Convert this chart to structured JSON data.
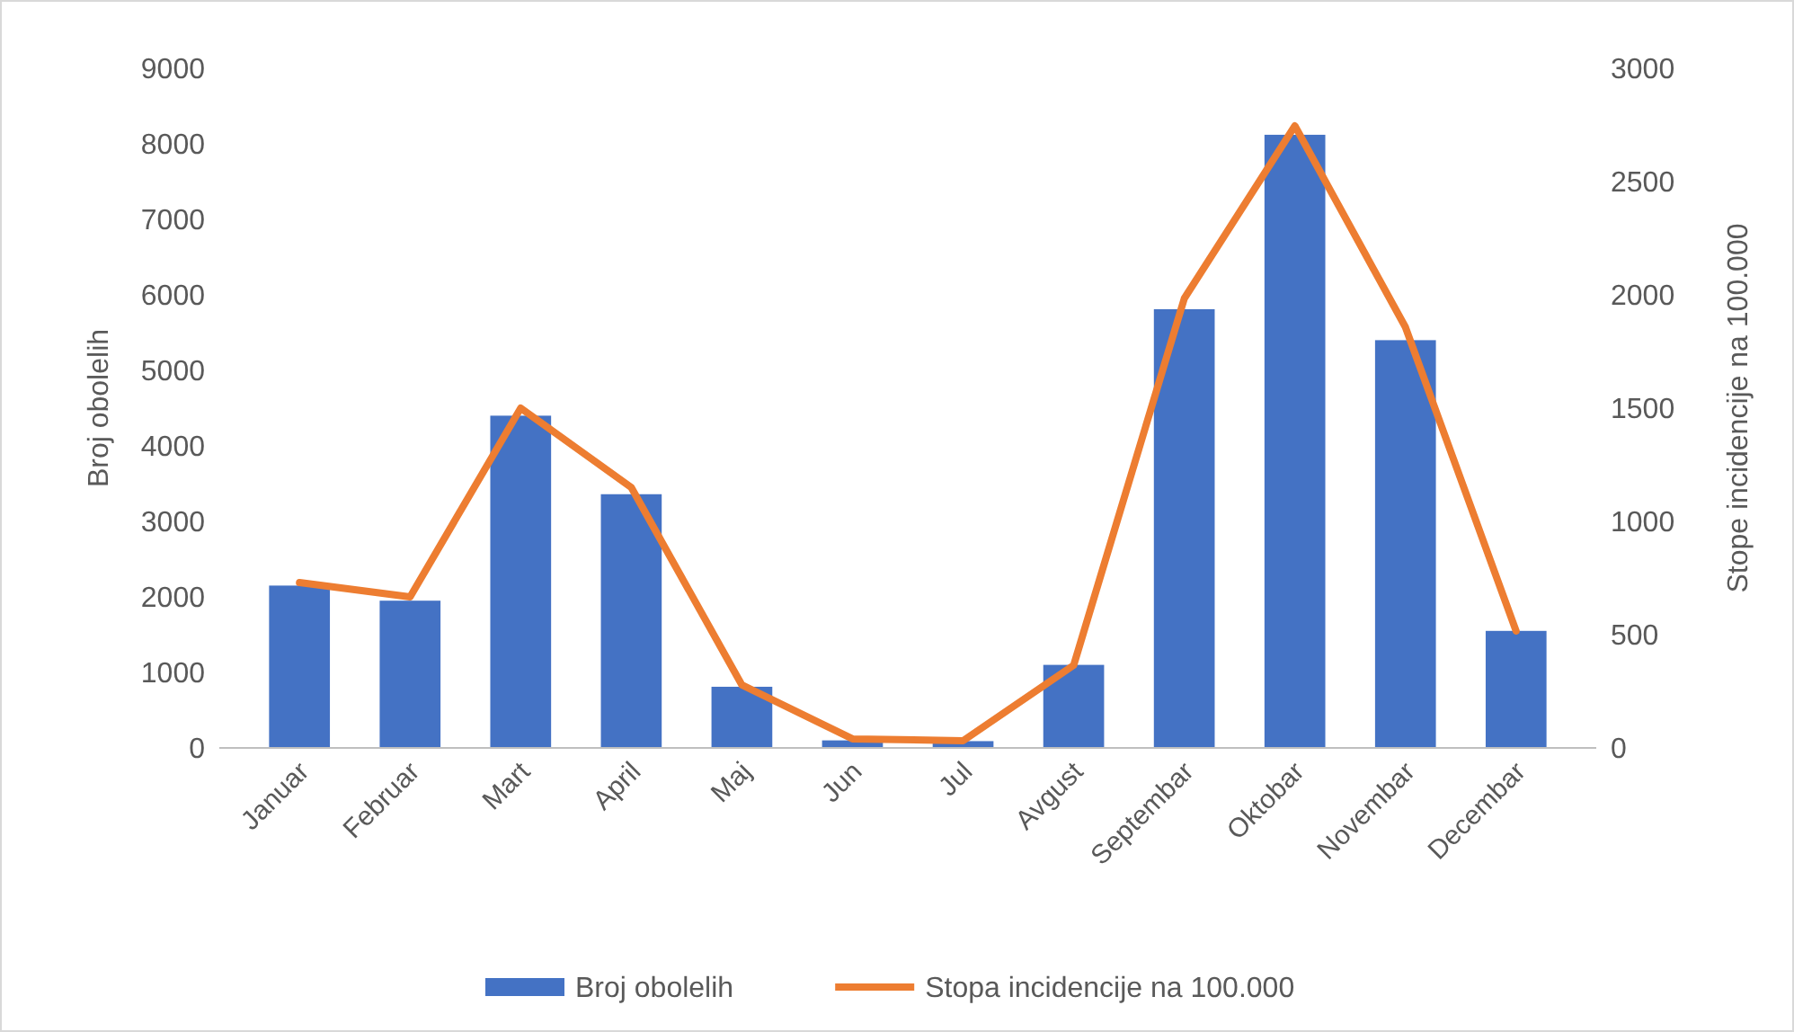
{
  "chart_data": {
    "type": "bar",
    "categories": [
      "Januar",
      "Februar",
      "Mart",
      "April",
      "Maj",
      "Jun",
      "Jul",
      "Avgust",
      "Septembar",
      "Oktobar",
      "Novembar",
      "Decembar"
    ],
    "series": [
      {
        "name": "Broj obolelih",
        "color": "#4472c4",
        "values": [
          2150,
          1950,
          4400,
          3360,
          810,
          100,
          90,
          1100,
          5810,
          8120,
          5400,
          1550
        ]
      },
      {
        "name": "Stopa incidencije na 100.000",
        "type": "line",
        "axis": "y2",
        "color": "#ed7d31",
        "values": [
          730,
          667,
          1500,
          1150,
          278,
          40,
          32,
          365,
          1984,
          2746,
          1857,
          516
        ]
      }
    ],
    "ylabel": "Broj obolelih",
    "y2label": "Stope incidencije na 100.000",
    "ylim": [
      0,
      9000
    ],
    "yticks": [
      0,
      1000,
      2000,
      3000,
      4000,
      5000,
      6000,
      7000,
      8000,
      9000
    ],
    "y2lim": [
      0,
      3000
    ],
    "y2ticks": [
      0,
      500,
      1000,
      1500,
      2000,
      2500,
      3000
    ],
    "grid": false,
    "legend": "bottom",
    "line_style": "solid",
    "marker": "none"
  }
}
